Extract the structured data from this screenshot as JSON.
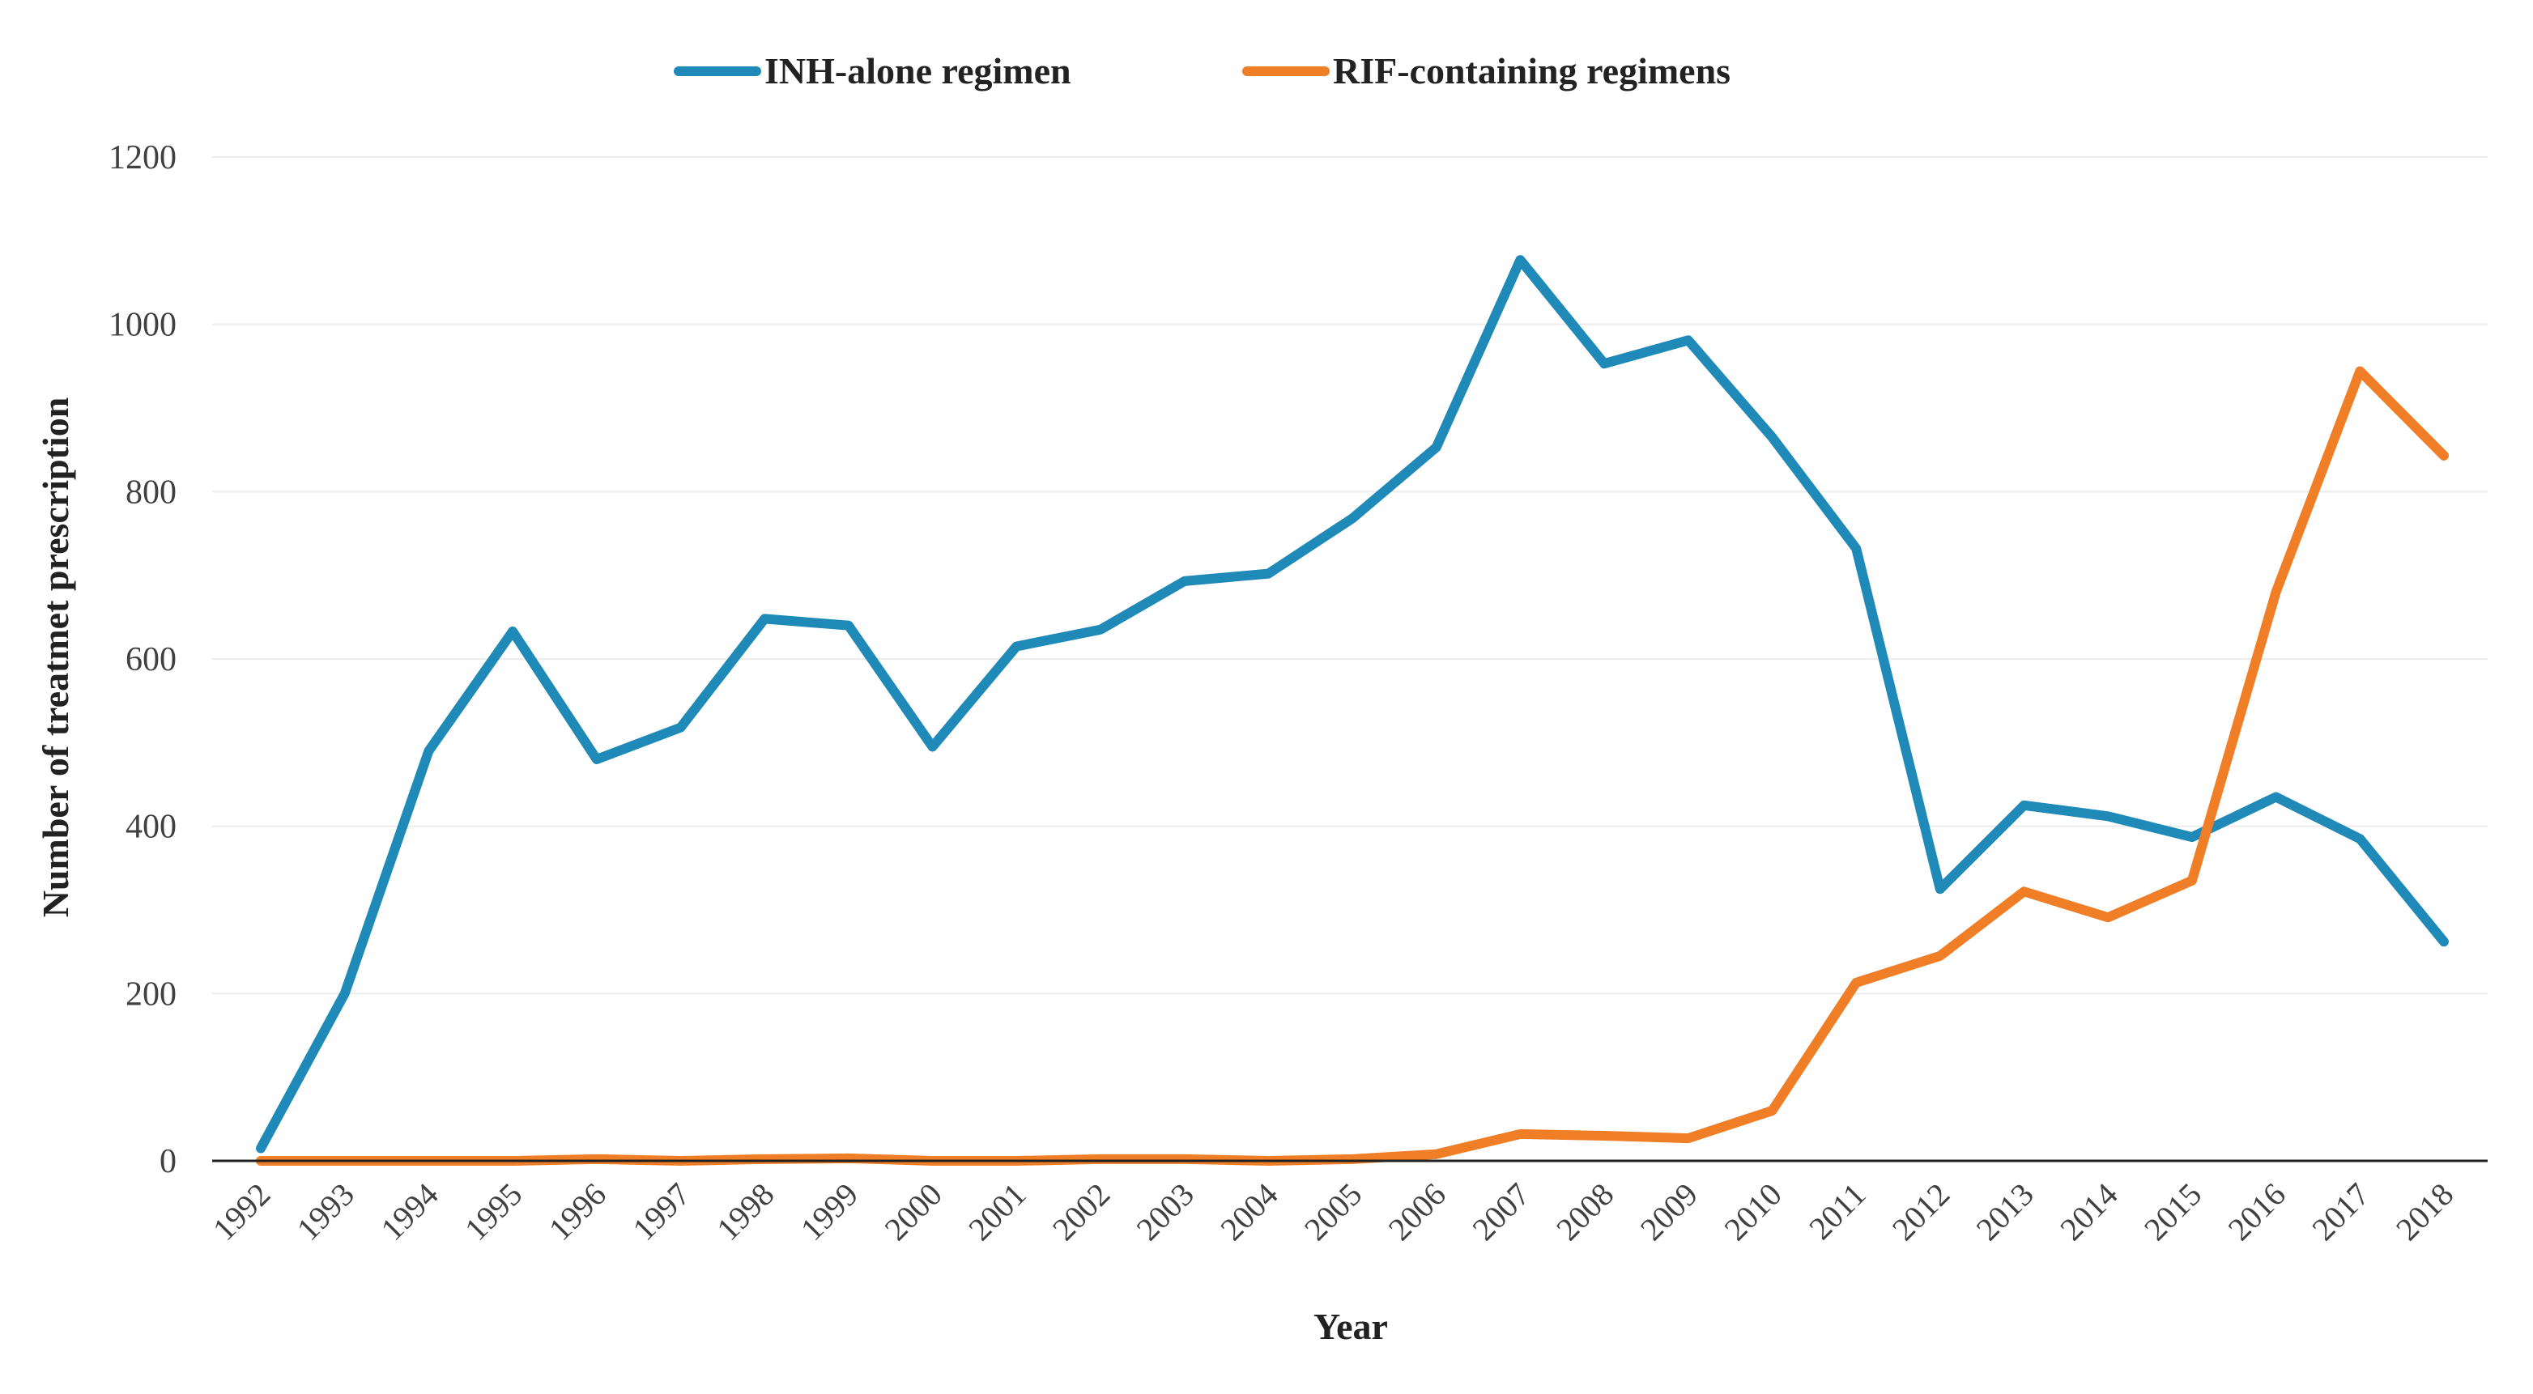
{
  "chart_data": {
    "type": "line",
    "title": "",
    "xlabel": "Year",
    "ylabel": "Number of  treatmet prescription",
    "ylim": [
      0,
      1200
    ],
    "yticks": [
      0,
      200,
      400,
      600,
      800,
      1000,
      1200
    ],
    "grid": true,
    "legend_position": "top-center",
    "categories": [
      "1992",
      "1993",
      "1994",
      "1995",
      "1996",
      "1997",
      "1998",
      "1999",
      "2000",
      "2001",
      "2002",
      "2003",
      "2004",
      "2005",
      "2006",
      "2007",
      "2008",
      "2009",
      "2010",
      "2011",
      "2012",
      "2013",
      "2014",
      "2015",
      "2016",
      "2017",
      "2018"
    ],
    "series": [
      {
        "name": "INH-alone regimen",
        "color": "#1f8ab8",
        "values": [
          15,
          200,
          490,
          633,
          480,
          518,
          648,
          640,
          495,
          615,
          635,
          693,
          702,
          768,
          853,
          1077,
          953,
          981,
          865,
          732,
          325,
          425,
          412,
          387,
          435,
          385,
          262
        ]
      },
      {
        "name": "RIF-containing regimens",
        "color": "#f07e26",
        "values": [
          0,
          0,
          0,
          0,
          2,
          0,
          2,
          3,
          0,
          0,
          2,
          2,
          0,
          2,
          8,
          32,
          30,
          27,
          60,
          213,
          245,
          322,
          291,
          335,
          680,
          944,
          843
        ]
      }
    ]
  }
}
